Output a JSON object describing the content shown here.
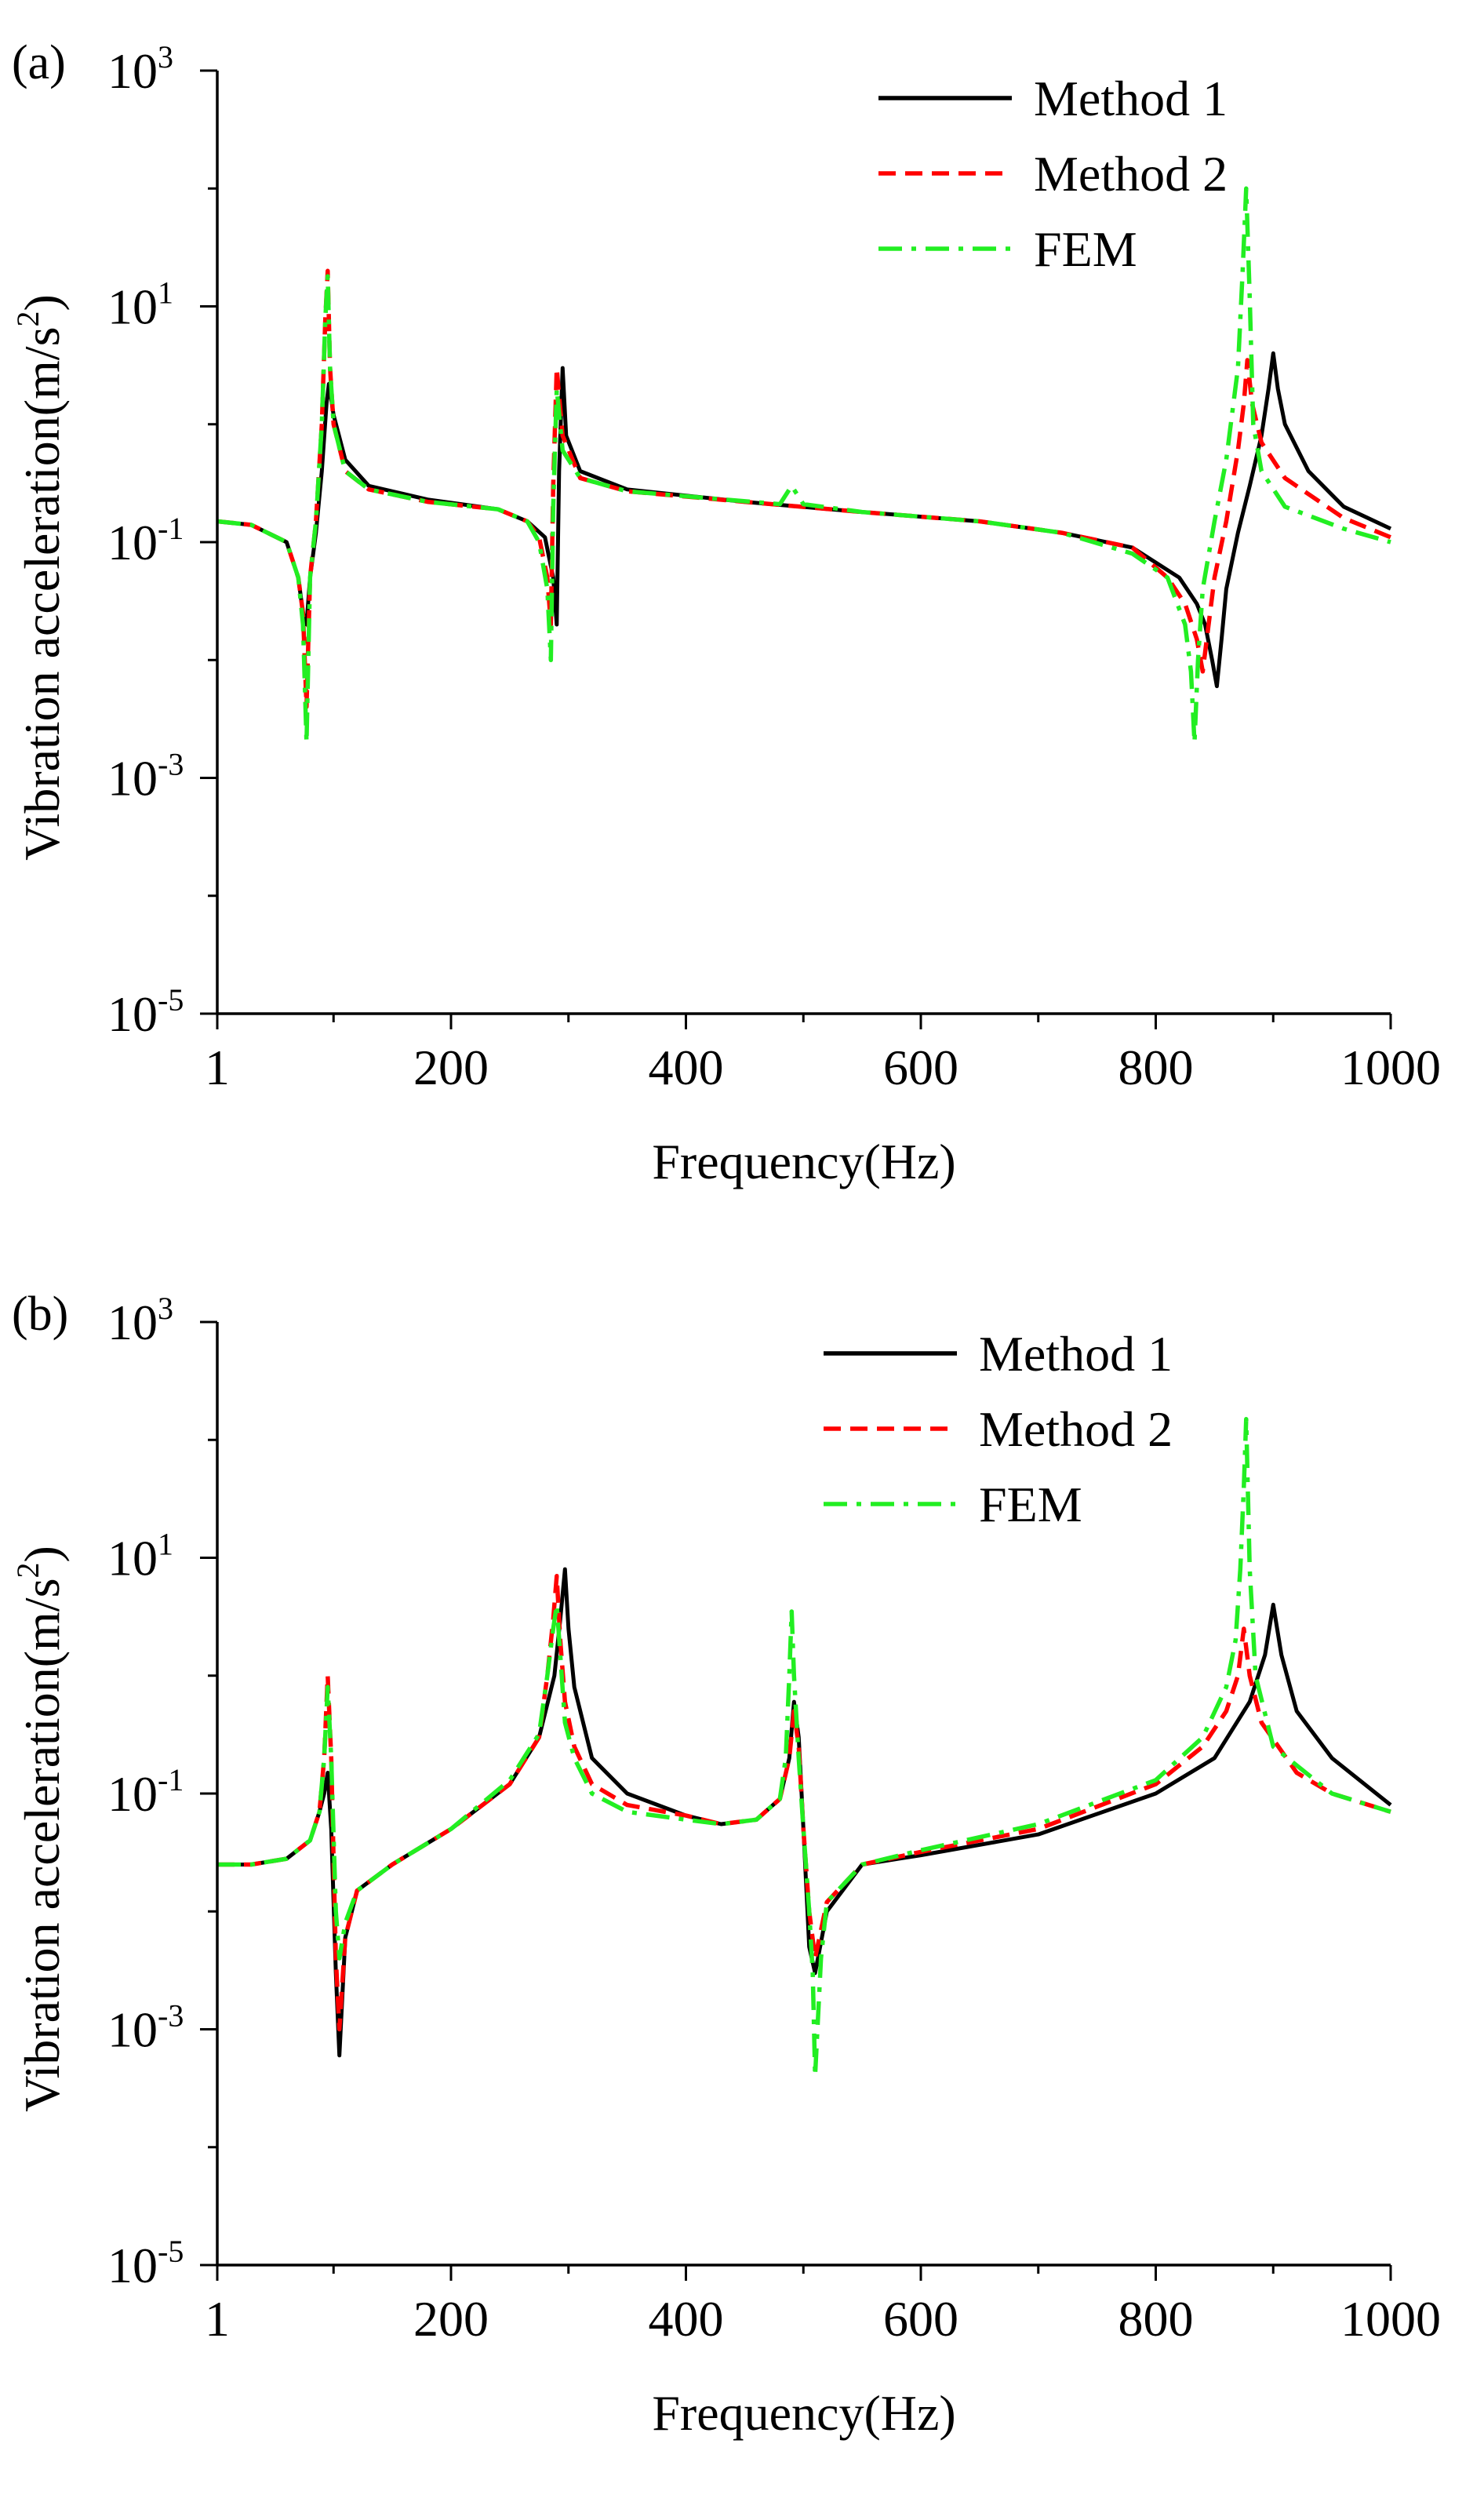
{
  "chart_data": [
    {
      "type": "line",
      "panel_label": "(a)",
      "xlabel": "Frequency(Hz)",
      "ylabel_base": "Vibration acceleration(m/s",
      "ylabel_sup": "2",
      "ylabel_end": ")",
      "xlim": [
        1,
        1000
      ],
      "ylim_log10": [
        -5,
        3
      ],
      "x_ticks": [
        {
          "value": 1,
          "label": "1"
        },
        {
          "value": 200,
          "label": "200"
        },
        {
          "value": 400,
          "label": "400"
        },
        {
          "value": 600,
          "label": "600"
        },
        {
          "value": 800,
          "label": "800"
        },
        {
          "value": 1000,
          "label": "1000"
        }
      ],
      "y_ticks": [
        {
          "exp": 3,
          "base": "10",
          "sup": "3"
        },
        {
          "exp": 1,
          "base": "10",
          "sup": "1"
        },
        {
          "exp": -1,
          "base": "10",
          "sup": "-1"
        },
        {
          "exp": -3,
          "base": "10",
          "sup": "-3"
        },
        {
          "exp": -5,
          "base": "10",
          "sup": "-5"
        }
      ],
      "legend_position": "top-right",
      "series": [
        {
          "name": "Method 1",
          "color": "#000000",
          "style": "solid",
          "x": [
            1,
            30,
            60,
            70,
            74,
            77,
            80,
            85,
            90,
            94,
            96,
            100,
            110,
            130,
            180,
            240,
            265,
            280,
            287,
            290,
            292,
            295,
            298,
            310,
            350,
            450,
            550,
            650,
            720,
            780,
            820,
            835,
            842,
            848,
            852,
            856,
            860,
            870,
            880,
            890,
            896,
            900,
            904,
            910,
            930,
            960,
            1000
          ],
          "y": [
            0.15,
            0.14,
            0.1,
            0.05,
            0.025,
            0.02,
            0.05,
            0.12,
            0.4,
            1.5,
            2.2,
            1.2,
            0.5,
            0.3,
            0.23,
            0.19,
            0.15,
            0.11,
            0.05,
            0.02,
            0.4,
            3.0,
            0.8,
            0.4,
            0.28,
            0.22,
            0.18,
            0.15,
            0.12,
            0.09,
            0.05,
            0.03,
            0.02,
            0.01,
            0.006,
            0.015,
            0.04,
            0.12,
            0.3,
            0.8,
            2.0,
            4.0,
            2.0,
            1.0,
            0.4,
            0.2,
            0.13
          ]
        },
        {
          "name": "Method 2",
          "color": "#ff0000",
          "style": "dashed",
          "x": [
            1,
            30,
            60,
            70,
            74,
            77,
            80,
            85,
            90,
            93,
            95,
            97,
            100,
            110,
            130,
            180,
            240,
            265,
            275,
            282,
            285,
            287,
            290,
            295,
            310,
            350,
            450,
            550,
            650,
            720,
            780,
            810,
            825,
            835,
            840,
            845,
            850,
            860,
            870,
            875,
            878,
            882,
            890,
            910,
            960,
            1000
          ],
          "y": [
            0.15,
            0.14,
            0.1,
            0.05,
            0.025,
            0.004,
            0.05,
            0.15,
            1.0,
            8.0,
            20.0,
            3.0,
            1.0,
            0.4,
            0.28,
            0.22,
            0.19,
            0.15,
            0.11,
            0.05,
            0.02,
            0.3,
            3.0,
            0.8,
            0.35,
            0.27,
            0.22,
            0.18,
            0.15,
            0.12,
            0.09,
            0.05,
            0.03,
            0.015,
            0.008,
            0.02,
            0.05,
            0.15,
            0.6,
            1.5,
            3.5,
            1.5,
            0.7,
            0.35,
            0.16,
            0.11
          ]
        },
        {
          "name": "FEM",
          "color": "#22ee22",
          "style": "dashdot",
          "x": [
            1,
            30,
            60,
            70,
            74,
            77,
            80,
            85,
            90,
            93,
            95,
            97,
            100,
            110,
            130,
            180,
            240,
            265,
            275,
            282,
            285,
            287,
            290,
            295,
            310,
            350,
            480,
            490,
            500,
            550,
            650,
            720,
            780,
            810,
            825,
            830,
            833,
            836,
            840,
            850,
            860,
            870,
            874,
            877,
            880,
            883,
            890,
            910,
            960,
            1000
          ],
          "y": [
            0.15,
            0.14,
            0.1,
            0.05,
            0.02,
            0.002,
            0.05,
            0.15,
            1.0,
            8.0,
            18.0,
            3.0,
            1.0,
            0.4,
            0.28,
            0.22,
            0.19,
            0.15,
            0.1,
            0.04,
            0.01,
            0.2,
            2.0,
            0.6,
            0.35,
            0.27,
            0.21,
            0.3,
            0.21,
            0.18,
            0.15,
            0.12,
            0.08,
            0.05,
            0.02,
            0.008,
            0.002,
            0.01,
            0.04,
            0.15,
            0.5,
            3.0,
            20.0,
            100.0,
            12.0,
            1.0,
            0.4,
            0.2,
            0.13,
            0.1
          ]
        }
      ]
    },
    {
      "type": "line",
      "panel_label": "(b)",
      "xlabel": "Frequency(Hz)",
      "ylabel_base": "Vibration acceleration(m/s",
      "ylabel_sup": "2",
      "ylabel_end": ")",
      "xlim": [
        1,
        1000
      ],
      "ylim_log10": [
        -5,
        3
      ],
      "x_ticks": [
        {
          "value": 1,
          "label": "1"
        },
        {
          "value": 200,
          "label": "200"
        },
        {
          "value": 400,
          "label": "400"
        },
        {
          "value": 600,
          "label": "600"
        },
        {
          "value": 800,
          "label": "800"
        },
        {
          "value": 1000,
          "label": "1000"
        }
      ],
      "y_ticks": [
        {
          "exp": 3,
          "base": "10",
          "sup": "3"
        },
        {
          "exp": 1,
          "base": "10",
          "sup": "1"
        },
        {
          "exp": -1,
          "base": "10",
          "sup": "-1"
        },
        {
          "exp": -3,
          "base": "10",
          "sup": "-3"
        },
        {
          "exp": -5,
          "base": "10",
          "sup": "-5"
        }
      ],
      "legend_position": "top-right",
      "series": [
        {
          "name": "Method 1",
          "color": "#000000",
          "style": "solid",
          "x": [
            1,
            30,
            60,
            80,
            88,
            92,
            95,
            98,
            102,
            105,
            110,
            120,
            150,
            200,
            250,
            275,
            288,
            293,
            297,
            300,
            305,
            320,
            350,
            400,
            430,
            460,
            480,
            488,
            492,
            496,
            500,
            505,
            510,
            520,
            550,
            600,
            700,
            800,
            850,
            880,
            893,
            900,
            907,
            920,
            950,
            1000
          ],
          "y": [
            0.025,
            0.025,
            0.028,
            0.04,
            0.07,
            0.1,
            0.15,
            0.05,
            0.003,
            0.0006,
            0.006,
            0.015,
            0.025,
            0.05,
            0.12,
            0.3,
            1.0,
            3.0,
            8.0,
            2.5,
            0.8,
            0.2,
            0.1,
            0.065,
            0.055,
            0.06,
            0.09,
            0.2,
            0.6,
            0.3,
            0.05,
            0.005,
            0.003,
            0.01,
            0.025,
            0.03,
            0.045,
            0.1,
            0.2,
            0.6,
            1.5,
            4.0,
            1.5,
            0.5,
            0.2,
            0.08
          ]
        },
        {
          "name": "Method 2",
          "color": "#ff0000",
          "style": "dashed",
          "x": [
            1,
            30,
            60,
            80,
            88,
            92,
            95,
            98,
            102,
            105,
            110,
            120,
            150,
            200,
            250,
            275,
            282,
            287,
            290,
            293,
            297,
            305,
            320,
            350,
            400,
            430,
            460,
            480,
            488,
            492,
            496,
            500,
            505,
            510,
            520,
            550,
            600,
            700,
            800,
            840,
            860,
            870,
            875,
            880,
            890,
            920,
            950,
            1000
          ],
          "y": [
            0.025,
            0.025,
            0.028,
            0.04,
            0.07,
            0.2,
            1.0,
            0.2,
            0.004,
            0.001,
            0.006,
            0.015,
            0.025,
            0.05,
            0.12,
            0.3,
            1.0,
            3.0,
            7.0,
            2.0,
            0.6,
            0.25,
            0.12,
            0.08,
            0.065,
            0.055,
            0.06,
            0.09,
            0.2,
            0.5,
            0.25,
            0.05,
            0.01,
            0.004,
            0.012,
            0.025,
            0.032,
            0.05,
            0.12,
            0.25,
            0.5,
            1.0,
            2.5,
            1.0,
            0.4,
            0.15,
            0.1,
            0.07
          ]
        },
        {
          "name": "FEM",
          "color": "#22ee22",
          "style": "dashdot",
          "x": [
            1,
            30,
            60,
            80,
            88,
            92,
            95,
            98,
            102,
            105,
            110,
            120,
            150,
            200,
            250,
            275,
            282,
            287,
            290,
            293,
            297,
            305,
            320,
            350,
            400,
            430,
            460,
            480,
            485,
            488,
            490,
            492,
            496,
            500,
            505,
            508,
            510,
            515,
            520,
            550,
            600,
            700,
            800,
            840,
            860,
            868,
            872,
            875,
            877,
            880,
            885,
            900,
            950,
            1000
          ],
          "y": [
            0.025,
            0.025,
            0.028,
            0.04,
            0.07,
            0.2,
            0.8,
            0.2,
            0.01,
            0.004,
            0.008,
            0.015,
            0.025,
            0.05,
            0.13,
            0.32,
            1.0,
            2.5,
            4.0,
            1.5,
            0.4,
            0.2,
            0.1,
            0.07,
            0.06,
            0.055,
            0.06,
            0.09,
            0.2,
            1.0,
            3.5,
            1.0,
            0.2,
            0.05,
            0.01,
            0.003,
            0.0004,
            0.004,
            0.012,
            0.025,
            0.033,
            0.055,
            0.13,
            0.3,
            0.8,
            2.0,
            8.0,
            40.0,
            150.0,
            8.0,
            1.0,
            0.25,
            0.1,
            0.07
          ]
        }
      ]
    }
  ]
}
